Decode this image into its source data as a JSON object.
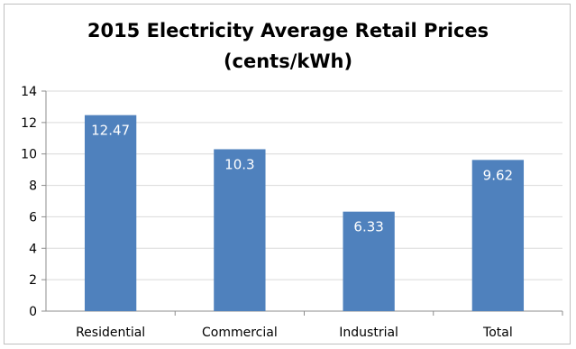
{
  "chart_data": {
    "type": "bar",
    "title_line1": "2015 Electricity Average Retail Prices",
    "title_line2": "(cents/kWh)",
    "categories": [
      "Residential",
      "Commercial",
      "Industrial",
      "Total"
    ],
    "values": [
      12.47,
      10.3,
      6.33,
      9.62
    ],
    "data_labels": [
      "12.47",
      "10.3",
      "6.33",
      "9.62"
    ],
    "ylim": [
      0,
      14
    ],
    "yticks": [
      0,
      2,
      4,
      6,
      8,
      10,
      12,
      14
    ],
    "grid": true,
    "legend": "none",
    "bar_color": "#4f81bd",
    "grid_color": "#d9d9d9",
    "axis_color": "#8c8c8c"
  }
}
